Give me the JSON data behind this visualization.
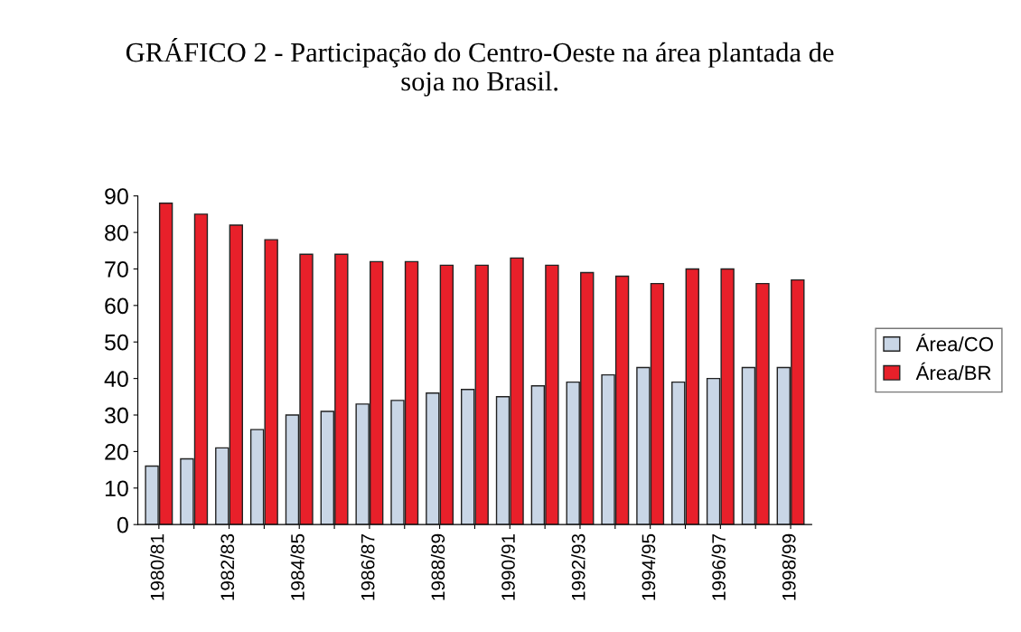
{
  "chart_data": {
    "type": "bar",
    "title": "GRÁFICO 2 - Participação do Centro-Oeste na área plantada de\nsoja no Brasil.",
    "categories": [
      "1980/81",
      null,
      "1982/83",
      null,
      "1984/85",
      null,
      "1986/87",
      null,
      "1988/89",
      null,
      "1990/91",
      null,
      "1992/93",
      null,
      "1994/95",
      null,
      "1996/97",
      null,
      "1998/99"
    ],
    "series": [
      {
        "name": "Área/CO",
        "color": "#c9d6e6",
        "values": [
          16,
          18,
          21,
          26,
          30,
          31,
          33,
          34,
          36,
          37,
          35,
          38,
          39,
          41,
          43,
          39,
          40,
          43,
          43
        ]
      },
      {
        "name": "Área/BR",
        "color": "#e8202a",
        "values": [
          88,
          85,
          82,
          78,
          74,
          74,
          72,
          72,
          71,
          71,
          73,
          71,
          69,
          68,
          66,
          70,
          70,
          66,
          67
        ]
      }
    ],
    "ylim": [
      0,
      90
    ],
    "yticks": [
      0,
      10,
      20,
      30,
      40,
      50,
      60,
      70,
      80,
      90
    ],
    "grid": false,
    "legend": "right"
  }
}
